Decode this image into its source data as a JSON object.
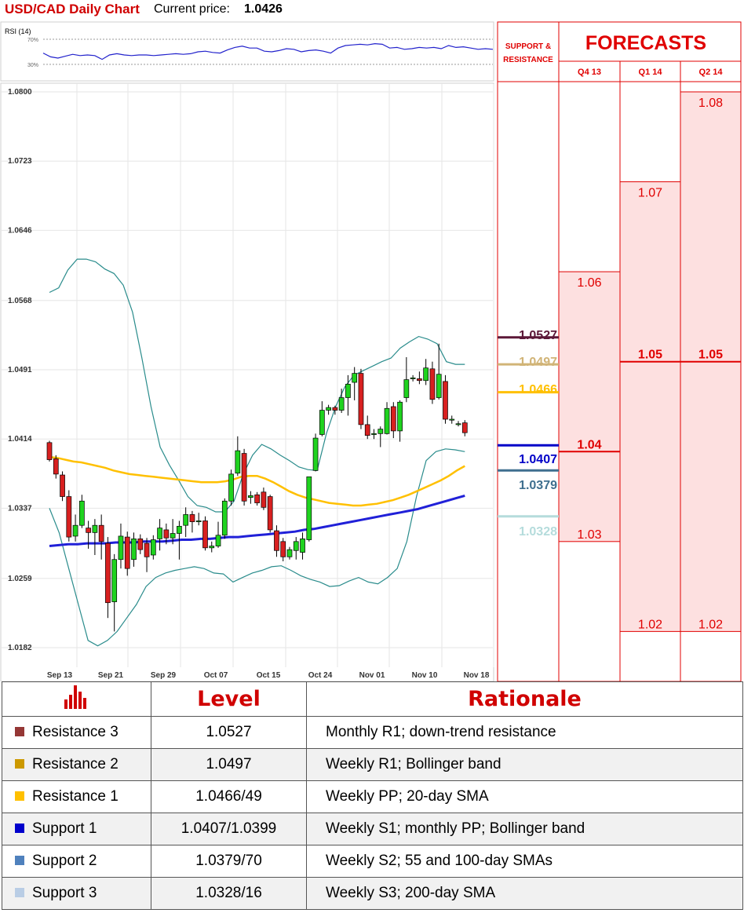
{
  "header": {
    "title": "USD/CAD Daily Chart",
    "price_label": "Current price:",
    "price_value": "1.0426"
  },
  "chart_data": {
    "type": "candlestick",
    "title": "USD/CAD Daily Chart",
    "price_axis": {
      "ticks": [
        "1.0800",
        "1.0723",
        "1.0646",
        "1.0568",
        "1.0491",
        "1.0414",
        "1.0337",
        "1.0259",
        "1.0182"
      ],
      "range": [
        1.0182,
        1.08
      ]
    },
    "date_labels": [
      "Sep 13",
      "Sep 21",
      "Sep 29",
      "Oct 07",
      "Oct 15",
      "Oct 24",
      "Nov 01",
      "Nov 10",
      "Nov 18"
    ],
    "candles": [
      [
        1.041,
        1.0391,
        1.0412,
        1.0389
      ],
      [
        1.0392,
        1.0375,
        1.0396,
        1.037
      ],
      [
        1.0374,
        1.035,
        1.0378,
        1.0345
      ],
      [
        1.035,
        1.0305,
        1.0357,
        1.03
      ],
      [
        1.0306,
        1.0318,
        1.033,
        1.03
      ],
      [
        1.0318,
        1.0345,
        1.0352,
        1.0315
      ],
      [
        1.0315,
        1.031,
        1.0323,
        1.0292
      ],
      [
        1.031,
        1.0318,
        1.0325,
        1.0285
      ],
      [
        1.0318,
        1.03,
        1.033,
        1.028
      ],
      [
        1.0298,
        1.0232,
        1.0305,
        1.0215
      ],
      [
        1.0233,
        1.028,
        1.0286,
        1.02
      ],
      [
        1.028,
        1.0306,
        1.032,
        1.027
      ],
      [
        1.0305,
        1.027,
        1.0311,
        1.0262
      ],
      [
        1.028,
        1.0303,
        1.031,
        1.0272
      ],
      [
        1.0303,
        1.0291,
        1.0308,
        1.0286
      ],
      [
        1.0298,
        1.0283,
        1.0304,
        1.0266
      ],
      [
        1.0285,
        1.0302,
        1.0307,
        1.028
      ],
      [
        1.0303,
        1.0315,
        1.0325,
        1.029
      ],
      [
        1.0313,
        1.0304,
        1.032,
        1.0297
      ],
      [
        1.0304,
        1.0309,
        1.0325,
        1.0297
      ],
      [
        1.0309,
        1.0317,
        1.0323,
        1.028
      ],
      [
        1.0318,
        1.033,
        1.0338,
        1.0305
      ],
      [
        1.033,
        1.0322,
        1.0334,
        1.031
      ],
      [
        1.0322,
        1.0323,
        1.0332,
        1.0318
      ],
      [
        1.0323,
        1.0293,
        1.0328,
        1.029
      ],
      [
        1.0293,
        1.0295,
        1.03,
        1.0288
      ],
      [
        1.0295,
        1.0307,
        1.0322,
        1.0293
      ],
      [
        1.0307,
        1.0345,
        1.0348,
        1.0303
      ],
      [
        1.0345,
        1.0375,
        1.038,
        1.034
      ],
      [
        1.0376,
        1.0401,
        1.0417,
        1.0373
      ],
      [
        1.0398,
        1.0345,
        1.0403,
        1.034
      ],
      [
        1.0349,
        1.0351,
        1.0356,
        1.0342
      ],
      [
        1.0352,
        1.0343,
        1.0355,
        1.034
      ],
      [
        1.0355,
        1.0338,
        1.036,
        1.0335
      ],
      [
        1.035,
        1.0313,
        1.0352,
        1.031
      ],
      [
        1.0312,
        1.029,
        1.0318,
        1.0283
      ],
      [
        1.03,
        1.0283,
        1.0304,
        1.0278
      ],
      [
        1.0283,
        1.0291,
        1.0294,
        1.028
      ],
      [
        1.029,
        1.03,
        1.0305,
        1.028
      ],
      [
        1.0288,
        1.0303,
        1.031,
        1.028
      ],
      [
        1.0302,
        1.0372,
        1.0372,
        1.03
      ],
      [
        1.0379,
        1.0415,
        1.042,
        1.0378
      ],
      [
        1.0419,
        1.0446,
        1.0456,
        1.0417
      ],
      [
        1.0446,
        1.0449,
        1.0452,
        1.0441
      ],
      [
        1.0449,
        1.0446,
        1.0451,
        1.0441
      ],
      [
        1.0446,
        1.046,
        1.047,
        1.0443
      ],
      [
        1.046,
        1.0475,
        1.0485,
        1.044
      ],
      [
        1.0477,
        1.0487,
        1.0494,
        1.0457
      ],
      [
        1.0487,
        1.043,
        1.0492,
        1.0425
      ],
      [
        1.043,
        1.0418,
        1.044,
        1.0414
      ],
      [
        1.042,
        1.042,
        1.0425,
        1.0414
      ],
      [
        1.042,
        1.0425,
        1.0428,
        1.0405
      ],
      [
        1.042,
        1.0448,
        1.0455,
        1.0419
      ],
      [
        1.045,
        1.0423,
        1.0455,
        1.0415
      ],
      [
        1.0423,
        1.0455,
        1.0457,
        1.0411
      ],
      [
        1.046,
        1.048,
        1.0505,
        1.0455
      ],
      [
        1.0481,
        1.0482,
        1.0485,
        1.0478
      ],
      [
        1.0481,
        1.0479,
        1.0489,
        1.0475
      ],
      [
        1.0479,
        1.0493,
        1.0503,
        1.0474
      ],
      [
        1.0492,
        1.0458,
        1.05,
        1.0453
      ],
      [
        1.046,
        1.0486,
        1.052,
        1.0458
      ],
      [
        1.0478,
        1.0436,
        1.0485,
        1.0431
      ],
      [
        1.0436,
        1.0436,
        1.044,
        1.0431
      ],
      [
        1.043,
        1.0431,
        1.0434,
        1.0428
      ],
      [
        1.0432,
        1.0421,
        1.0435,
        1.0417
      ]
    ],
    "indicators": {
      "sma_55": [
        1.0394,
        1.0393,
        1.0391,
        1.0389,
        1.0388,
        1.0386,
        1.0384,
        1.0382,
        1.0379,
        1.0377,
        1.0375,
        1.0374,
        1.0373,
        1.0372,
        1.0371,
        1.037,
        1.0369,
        1.0368,
        1.0367,
        1.0366,
        1.0366,
        1.0366,
        1.0367,
        1.0369,
        1.0372,
        1.0373,
        1.0373,
        1.037,
        1.0366,
        1.0361,
        1.0356,
        1.0352,
        1.0349,
        1.0347,
        1.0345,
        1.0343,
        1.0342,
        1.0341,
        1.034,
        1.034,
        1.0341,
        1.0342,
        1.0344,
        1.0346,
        1.0349,
        1.0352,
        1.0356,
        1.036,
        1.0364,
        1.0368,
        1.0373,
        1.0379,
        1.0384
      ],
      "sma_200": [
        1.0295,
        1.0296,
        1.0297,
        1.0297,
        1.0298,
        1.0298,
        1.0298,
        1.0299,
        1.0299,
        1.0299,
        1.03,
        1.03,
        1.03,
        1.0301,
        1.0302,
        1.0302,
        1.0303,
        1.0303,
        1.0304,
        1.0305,
        1.0305,
        1.0306,
        1.0307,
        1.0308,
        1.0309,
        1.031,
        1.0311,
        1.0313,
        1.0314,
        1.0316,
        1.0318,
        1.032,
        1.0322,
        1.0324,
        1.0326,
        1.0328,
        1.033,
        1.0332,
        1.0334,
        1.0336,
        1.0339,
        1.0342,
        1.0345,
        1.0348,
        1.0351
      ],
      "bb_upper": [
        1.0577,
        1.0582,
        1.0602,
        1.0614,
        1.0614,
        1.0611,
        1.0603,
        1.0598,
        1.0585,
        1.0555,
        1.0505,
        1.045,
        1.0405,
        1.0385,
        1.0368,
        1.035,
        1.034,
        1.0338,
        1.0333,
        1.0333,
        1.0345,
        1.0375,
        1.0396,
        1.0408,
        1.0403,
        1.0396,
        1.039,
        1.0383,
        1.038,
        1.0379,
        1.042,
        1.045,
        1.0472,
        1.0485,
        1.049,
        1.0495,
        1.05,
        1.0504,
        1.0515,
        1.0522,
        1.0528,
        1.0525,
        1.052,
        1.05,
        1.0497,
        1.0497
      ],
      "bb_lower": [
        1.0337,
        1.031,
        1.027,
        1.023,
        1.019,
        1.0184,
        1.019,
        1.02,
        1.0215,
        1.023,
        1.025,
        1.026,
        1.0265,
        1.0268,
        1.027,
        1.0272,
        1.027,
        1.0265,
        1.0264,
        1.0255,
        1.026,
        1.0265,
        1.0268,
        1.0272,
        1.0273,
        1.0268,
        1.0262,
        1.0258,
        1.0255,
        1.025,
        1.0251,
        1.0256,
        1.026,
        1.0255,
        1.0253,
        1.026,
        1.027,
        1.03,
        1.035,
        1.039,
        1.04,
        1.0403,
        1.0402,
        1.04
      ],
      "rsi": [
        48,
        42,
        40,
        43,
        46,
        44,
        45,
        44,
        38,
        45,
        47,
        45,
        44,
        45,
        45,
        44,
        45,
        46,
        47,
        46,
        47,
        50,
        51,
        49,
        48,
        53,
        57,
        59,
        56,
        56,
        51,
        50,
        52,
        55,
        54,
        50,
        52,
        53,
        51,
        48,
        56,
        60,
        61,
        62,
        61,
        63,
        62,
        56,
        57,
        54,
        55,
        57,
        56,
        57,
        55,
        60,
        57,
        58,
        56,
        54,
        55,
        54
      ],
      "rsi_levels": [
        "70%",
        "30%"
      ],
      "rsi_label": "RSI (14)"
    },
    "levels": [
      {
        "value": "1.0527",
        "color": "#5c1838"
      },
      {
        "value": "1.0497",
        "color": "#d1b477"
      },
      {
        "value": "1.0466",
        "color": "#ffc000"
      },
      {
        "value": "1.0407",
        "color": "#0000c8"
      },
      {
        "value": "1.0379",
        "color": "#3f6f8f"
      },
      {
        "value": "1.0328",
        "color": "#b5dcdc"
      }
    ],
    "sr_header": [
      "SUPPORT &",
      "RESISTANCE"
    ],
    "forecasts": {
      "title": "FORECASTS",
      "columns": [
        {
          "label": "Q4 13",
          "low": "1.03",
          "mid": "1.04",
          "high": "1.06",
          "low_v": 1.03,
          "mid_v": 1.04,
          "high_v": 1.06
        },
        {
          "label": "Q1 14",
          "low": "1.02",
          "mid": "1.05",
          "high": "1.07",
          "low_v": 1.02,
          "mid_v": 1.05,
          "high_v": 1.07
        },
        {
          "label": "Q2 14",
          "low": "1.02",
          "mid": "1.05",
          "high": "1.08",
          "low_v": 1.02,
          "mid_v": 1.05,
          "high_v": 1.08
        }
      ]
    }
  },
  "table": {
    "col_level": "Level",
    "col_rationale": "Rationale",
    "header_icon": "bar-chart-icon",
    "rows": [
      {
        "label": "Resistance 3",
        "level": "1.0527",
        "rationale": "Monthly R1; down-trend resistance",
        "color": "#953735"
      },
      {
        "label": "Resistance 2",
        "level": "1.0497",
        "rationale": "Weekly R1; Bollinger band",
        "color": "#cc9900"
      },
      {
        "label": "Resistance 1",
        "level": "1.0466/49",
        "rationale": "Weekly PP; 20-day SMA",
        "color": "#ffc000"
      },
      {
        "label": "Support 1",
        "level": "1.0407/1.0399",
        "rationale": "Weekly S1; monthly PP; Bollinger band",
        "color": "#0000cc"
      },
      {
        "label": "Support 2",
        "level": "1.0379/70",
        "rationale": "Weekly S2; 55 and 100-day SMAs",
        "color": "#4f81bd"
      },
      {
        "label": "Support 3",
        "level": "1.0328/16",
        "rationale": "Weekly S3; 200-day SMA",
        "color": "#b9cde5"
      }
    ]
  }
}
